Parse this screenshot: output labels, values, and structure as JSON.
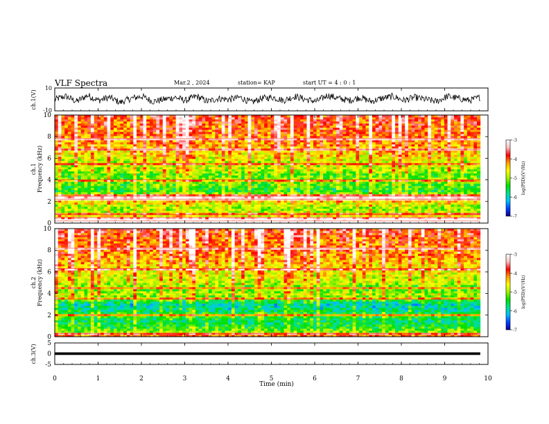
{
  "header": {
    "title": "VLF Spectra",
    "date": "Mar.2 , 2024",
    "station": "station= KAP",
    "start": "start  UT =   4 : 0  : 1"
  },
  "chart_data": [
    {
      "type": "line",
      "panel": "ch1-waveform",
      "ylabel": "ch.1(V)",
      "ylim": [
        -10,
        10
      ],
      "yticks": [
        "10",
        "-10"
      ],
      "xlim": [
        0,
        10
      ],
      "line_color": "#000000",
      "series": [
        {
          "values": [
            0,
            3,
            -2,
            4,
            -1,
            2,
            -3,
            1,
            3,
            -2,
            0,
            2,
            -1,
            3,
            -2,
            1,
            0,
            2,
            -3,
            1,
            2,
            -1,
            3,
            0,
            -2,
            4,
            1,
            -1,
            2,
            -2,
            1,
            3,
            -1,
            2,
            0,
            -2,
            3,
            1,
            -1,
            2
          ]
        }
      ]
    },
    {
      "type": "heatmap",
      "panel": "ch1-spectrogram",
      "ylabel_lines": [
        "ch.1",
        "Frequency  (kHz)"
      ],
      "ylim": [
        0,
        10
      ],
      "yticks": [
        "0",
        "2",
        "4",
        "6",
        "8",
        "10"
      ],
      "xlim": [
        0,
        10
      ],
      "colorbar": {
        "label": "log(PSD)(V²/Hz)",
        "ticks": [
          "-3",
          "-4",
          "-5",
          "-6",
          "-7"
        ],
        "range": [
          -7,
          -3
        ],
        "colors": [
          "#000090",
          "#0040ff",
          "#00c0ff",
          "#00e090",
          "#00e000",
          "#a0f000",
          "#ffff00",
          "#ffa000",
          "#ff0000",
          "#ffc0c0",
          "#ffffff"
        ]
      },
      "band_profile": [
        {
          "f": 0.0,
          "v": -3.6
        },
        {
          "f": 0.3,
          "v": -3.8
        },
        {
          "f": 0.6,
          "v": -4.6
        },
        {
          "f": 1.0,
          "v": -5.0
        },
        {
          "f": 1.5,
          "v": -5.1
        },
        {
          "f": 2.0,
          "v": -4.6
        },
        {
          "f": 2.3,
          "v": -3.9
        },
        {
          "f": 2.6,
          "v": -4.8
        },
        {
          "f": 3.0,
          "v": -5.6
        },
        {
          "f": 3.5,
          "v": -5.4
        },
        {
          "f": 4.0,
          "v": -5.2
        },
        {
          "f": 4.5,
          "v": -5.4
        },
        {
          "f": 5.0,
          "v": -5.0
        },
        {
          "f": 5.5,
          "v": -5.1
        },
        {
          "f": 6.0,
          "v": -4.8
        },
        {
          "f": 7.0,
          "v": -4.5
        },
        {
          "f": 8.0,
          "v": -4.3
        },
        {
          "f": 9.0,
          "v": -4.2
        },
        {
          "f": 10.0,
          "v": -4.0
        }
      ],
      "horizontal_lines_khz": [
        0.2,
        0.5,
        0.8,
        2.2,
        2.5,
        4.0,
        5.5,
        6.8,
        7.8
      ]
    },
    {
      "type": "heatmap",
      "panel": "ch2-spectrogram",
      "ylabel_lines": [
        "ch.2",
        "Frequency  (kHz)"
      ],
      "ylim": [
        0,
        10
      ],
      "yticks": [
        "0",
        "2",
        "4",
        "6",
        "8",
        "10"
      ],
      "xlim": [
        0,
        10
      ],
      "colorbar": {
        "label": "log(PSD)(V²/Hz)",
        "ticks": [
          "-3",
          "-4",
          "-5",
          "-6",
          "-7"
        ],
        "range": [
          -7,
          -3
        ],
        "colors": [
          "#000090",
          "#0040ff",
          "#00c0ff",
          "#00e090",
          "#00e000",
          "#a0f000",
          "#ffff00",
          "#ffa000",
          "#ff0000",
          "#ffc0c0",
          "#ffffff"
        ]
      },
      "band_profile": [
        {
          "f": 0.0,
          "v": -4.0
        },
        {
          "f": 0.5,
          "v": -5.2
        },
        {
          "f": 1.0,
          "v": -5.6
        },
        {
          "f": 1.5,
          "v": -5.8
        },
        {
          "f": 2.0,
          "v": -5.4
        },
        {
          "f": 2.5,
          "v": -5.9
        },
        {
          "f": 3.0,
          "v": -6.1
        },
        {
          "f": 3.5,
          "v": -5.4
        },
        {
          "f": 4.0,
          "v": -5.0
        },
        {
          "f": 4.5,
          "v": -5.5
        },
        {
          "f": 5.0,
          "v": -5.0
        },
        {
          "f": 6.0,
          "v": -4.8
        },
        {
          "f": 7.0,
          "v": -4.5
        },
        {
          "f": 8.0,
          "v": -4.3
        },
        {
          "f": 9.0,
          "v": -4.2
        },
        {
          "f": 10.0,
          "v": -4.0
        }
      ],
      "horizontal_lines_khz": [
        0.3,
        2.0,
        3.5,
        4.5,
        6.3,
        8.2
      ]
    },
    {
      "type": "line",
      "panel": "ch3-trace",
      "ylabel": "ch.3(V)",
      "ylim": [
        -5,
        5
      ],
      "yticks": [
        "5",
        "0",
        "-5"
      ],
      "xlim": [
        0,
        10
      ],
      "level_v": 0,
      "band_halfwidth_v": 0.6,
      "line_color": "#000000"
    }
  ],
  "xaxis": {
    "label": "Time  (min)",
    "ticks": [
      "0",
      "1",
      "2",
      "3",
      "4",
      "5",
      "6",
      "7",
      "8",
      "9",
      "10"
    ],
    "range": [
      0,
      10
    ],
    "data_end": 9.82
  }
}
